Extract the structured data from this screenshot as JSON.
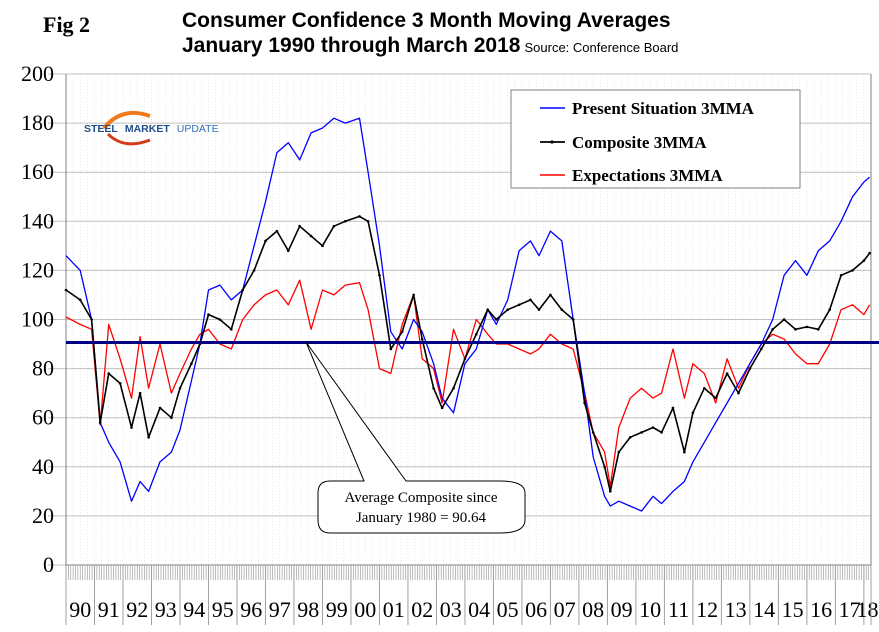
{
  "figure": {
    "label": "Fig 2",
    "title_line1": "Consumer Confidence 3 Month Moving Averages",
    "title_line2": "January 1990 through March 2018",
    "source": "Source: Conference Board",
    "logo": {
      "part1": "STEEL",
      "part2": "MARKET",
      "part3": "UPDATE"
    }
  },
  "chart_data": {
    "type": "line",
    "title": "Consumer Confidence 3 Month Moving Averages January 1990 through March 2018",
    "xlabel": "",
    "ylabel": "",
    "ylim": [
      0,
      200
    ],
    "yticks": [
      0,
      20,
      40,
      60,
      80,
      100,
      120,
      140,
      160,
      180,
      200
    ],
    "xticks": [
      "90",
      "91",
      "92",
      "93",
      "94",
      "95",
      "96",
      "97",
      "98",
      "99",
      "00",
      "01",
      "02",
      "03",
      "04",
      "05",
      "06",
      "07",
      "08",
      "09",
      "10",
      "11",
      "12",
      "13",
      "14",
      "15",
      "16",
      "17",
      "18"
    ],
    "x_range": [
      1990.0,
      2018.25
    ],
    "grid": true,
    "legend_position": "top-right",
    "x": [
      1990.0,
      1990.5,
      1990.9,
      1991.2,
      1991.5,
      1991.9,
      1992.3,
      1992.6,
      1992.9,
      1993.3,
      1993.7,
      1994.0,
      1994.4,
      1994.7,
      1995.0,
      1995.4,
      1995.8,
      1996.2,
      1996.6,
      1997.0,
      1997.4,
      1997.8,
      1998.2,
      1998.6,
      1999.0,
      1999.4,
      1999.8,
      2000.3,
      2000.6,
      2001.0,
      2001.4,
      2001.8,
      2002.2,
      2002.5,
      2002.9,
      2003.2,
      2003.6,
      2004.0,
      2004.4,
      2004.8,
      2005.1,
      2005.5,
      2005.9,
      2006.3,
      2006.6,
      2007.0,
      2007.4,
      2007.8,
      2008.2,
      2008.5,
      2008.9,
      2009.1,
      2009.4,
      2009.8,
      2010.2,
      2010.6,
      2010.9,
      2011.3,
      2011.7,
      2012.0,
      2012.4,
      2012.8,
      2013.2,
      2013.6,
      2014.0,
      2014.4,
      2014.8,
      2015.2,
      2015.6,
      2016.0,
      2016.4,
      2016.8,
      2017.2,
      2017.6,
      2018.0,
      2018.2
    ],
    "series": [
      {
        "name": "Present Situation 3MMA",
        "color": "#0000ff",
        "values": [
          126,
          120,
          100,
          58,
          50,
          42,
          26,
          34,
          30,
          42,
          46,
          55,
          75,
          90,
          112,
          114,
          108,
          112,
          130,
          148,
          168,
          172,
          165,
          176,
          178,
          182,
          180,
          182,
          160,
          130,
          95,
          88,
          100,
          95,
          82,
          68,
          62,
          82,
          88,
          104,
          98,
          108,
          128,
          132,
          126,
          136,
          132,
          100,
          70,
          44,
          28,
          24,
          26,
          24,
          22,
          28,
          25,
          30,
          34,
          42,
          50,
          58,
          66,
          74,
          82,
          90,
          100,
          118,
          124,
          118,
          128,
          132,
          140,
          150,
          156,
          158
        ]
      },
      {
        "name": "Composite 3MMA",
        "color": "#000000",
        "values": [
          112,
          108,
          100,
          58,
          78,
          74,
          56,
          70,
          52,
          64,
          60,
          72,
          82,
          90,
          102,
          100,
          96,
          112,
          120,
          132,
          136,
          128,
          138,
          134,
          130,
          138,
          140,
          142,
          140,
          118,
          88,
          95,
          110,
          92,
          72,
          64,
          72,
          84,
          94,
          104,
          100,
          104,
          106,
          108,
          104,
          110,
          104,
          100,
          66,
          54,
          40,
          30,
          46,
          52,
          54,
          56,
          54,
          64,
          46,
          62,
          72,
          68,
          78,
          70,
          80,
          88,
          96,
          100,
          96,
          97,
          96,
          104,
          118,
          120,
          124,
          127
        ]
      },
      {
        "name": "Expectations 3MMA",
        "color": "#ff0000",
        "values": [
          101,
          98,
          96,
          57,
          98,
          84,
          68,
          93,
          72,
          90,
          70,
          78,
          88,
          94,
          96,
          90,
          88,
          100,
          106,
          110,
          112,
          106,
          116,
          96,
          112,
          110,
          114,
          115,
          104,
          80,
          78,
          98,
          110,
          84,
          80,
          66,
          96,
          84,
          100,
          94,
          90,
          90,
          88,
          86,
          88,
          94,
          90,
          88,
          70,
          54,
          46,
          32,
          56,
          68,
          72,
          68,
          70,
          88,
          68,
          82,
          78,
          66,
          84,
          72,
          82,
          90,
          94,
          92,
          86,
          82,
          82,
          90,
          104,
          106,
          102,
          106
        ]
      }
    ],
    "reference_line": {
      "value": 90.64,
      "color": "#000080"
    },
    "annotation": {
      "line1": "Average Composite since",
      "line2": "January 1980 = 90.64"
    }
  }
}
